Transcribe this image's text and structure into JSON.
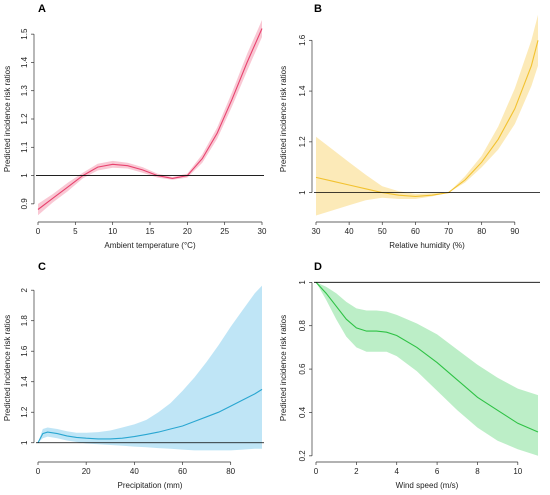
{
  "chart_data": [
    {
      "type": "line",
      "panel": "A",
      "xlabel": "Ambient temperature (°C)",
      "ylabel": "Predicted incidence risk ratios",
      "xlim": [
        0,
        30
      ],
      "ylim": [
        0.85,
        1.55
      ],
      "xticks": [
        0,
        5,
        10,
        15,
        20,
        25,
        30
      ],
      "yticks": [
        0.9,
        1.0,
        1.1,
        1.2,
        1.3,
        1.4,
        1.5
      ],
      "reference_line": 1.0,
      "color": "#e8436f",
      "band_color": "#f7b6c6",
      "series": [
        {
          "x": [
            0,
            2,
            4,
            6,
            8,
            10,
            12,
            14,
            16,
            18,
            20,
            22,
            24,
            26,
            28,
            30
          ],
          "y": [
            0.88,
            0.92,
            0.96,
            1.0,
            1.03,
            1.04,
            1.035,
            1.02,
            1.0,
            0.99,
            1.0,
            1.06,
            1.15,
            1.27,
            1.4,
            1.52
          ],
          "lower": [
            0.86,
            0.905,
            0.945,
            0.99,
            1.018,
            1.028,
            1.025,
            1.01,
            0.993,
            0.985,
            0.993,
            1.045,
            1.13,
            1.245,
            1.37,
            1.49
          ],
          "upper": [
            0.9,
            0.935,
            0.975,
            1.01,
            1.042,
            1.052,
            1.045,
            1.03,
            1.007,
            0.995,
            1.007,
            1.075,
            1.17,
            1.295,
            1.43,
            1.55
          ]
        }
      ]
    },
    {
      "type": "line",
      "panel": "B",
      "xlabel": "Relative humidity (%)",
      "ylabel": "Predicted incidence risk ratios",
      "xlim": [
        30,
        97
      ],
      "ylim": [
        0.9,
        1.68
      ],
      "xticks": [
        30,
        40,
        50,
        60,
        70,
        80,
        90
      ],
      "yticks": [
        1.0,
        1.2,
        1.4,
        1.6
      ],
      "reference_line": 1.0,
      "color": "#f2c230",
      "band_color": "#fbe3a0",
      "series": [
        {
          "x": [
            30,
            35,
            40,
            45,
            50,
            55,
            60,
            65,
            70,
            75,
            80,
            85,
            90,
            95,
            97
          ],
          "y": [
            1.06,
            1.045,
            1.03,
            1.015,
            1.0,
            0.99,
            0.985,
            0.99,
            1.0,
            1.05,
            1.12,
            1.21,
            1.33,
            1.5,
            1.6
          ],
          "lower": [
            0.91,
            0.93,
            0.95,
            0.97,
            0.98,
            0.975,
            0.975,
            0.985,
            1.0,
            1.04,
            1.1,
            1.17,
            1.27,
            1.42,
            1.5
          ],
          "upper": [
            1.22,
            1.17,
            1.12,
            1.07,
            1.025,
            1.005,
            0.995,
            0.998,
            1.0,
            1.065,
            1.145,
            1.26,
            1.41,
            1.6,
            1.7
          ]
        }
      ]
    },
    {
      "type": "line",
      "panel": "C",
      "xlabel": "Precipitation (mm)",
      "ylabel": "Predicted incidence risk ratios",
      "xlim": [
        0,
        93
      ],
      "ylim": [
        0.9,
        2.08
      ],
      "xticks": [
        0,
        20,
        40,
        60,
        80
      ],
      "yticks": [
        1.0,
        1.2,
        1.4,
        1.6,
        1.8,
        2.0
      ],
      "reference_line": 1.0,
      "color": "#29a6d1",
      "band_color": "#a9dcf3",
      "series": [
        {
          "x": [
            0,
            2,
            4,
            8,
            12,
            16,
            20,
            25,
            30,
            35,
            40,
            45,
            50,
            55,
            60,
            65,
            70,
            75,
            80,
            85,
            90,
            93
          ],
          "y": [
            1.0,
            1.06,
            1.07,
            1.06,
            1.045,
            1.035,
            1.03,
            1.025,
            1.025,
            1.03,
            1.04,
            1.055,
            1.07,
            1.09,
            1.11,
            1.14,
            1.17,
            1.2,
            1.24,
            1.28,
            1.32,
            1.35
          ],
          "lower": [
            1.0,
            1.03,
            1.04,
            1.03,
            1.015,
            1.005,
            0.995,
            0.99,
            0.985,
            0.98,
            0.975,
            0.97,
            0.965,
            0.96,
            0.955,
            0.95,
            0.95,
            0.95,
            0.95,
            0.955,
            0.96,
            0.96
          ],
          "upper": [
            1.0,
            1.09,
            1.1,
            1.09,
            1.075,
            1.065,
            1.065,
            1.07,
            1.08,
            1.1,
            1.12,
            1.15,
            1.2,
            1.26,
            1.34,
            1.43,
            1.53,
            1.64,
            1.76,
            1.87,
            1.98,
            2.03
          ]
        }
      ]
    },
    {
      "type": "line",
      "panel": "D",
      "xlabel": "Wind speed (m/s)",
      "ylabel": "Predicted incidence risk ratios",
      "xlim": [
        0,
        11
      ],
      "ylim": [
        0.19,
        1.02
      ],
      "xticks": [
        0,
        2,
        4,
        6,
        8,
        10
      ],
      "yticks": [
        0.2,
        0.4,
        0.6,
        0.8,
        1.0
      ],
      "reference_line": 1.0,
      "color": "#2ec245",
      "band_color": "#a6e8b4",
      "series": [
        {
          "x": [
            0,
            0.5,
            1,
            1.5,
            2,
            2.5,
            3,
            3.5,
            4,
            5,
            6,
            7,
            8,
            9,
            10,
            11
          ],
          "y": [
            1.0,
            0.95,
            0.89,
            0.83,
            0.79,
            0.775,
            0.775,
            0.77,
            0.755,
            0.7,
            0.63,
            0.55,
            0.47,
            0.41,
            0.35,
            0.31
          ],
          "lower": [
            1.0,
            0.92,
            0.83,
            0.75,
            0.7,
            0.68,
            0.68,
            0.68,
            0.66,
            0.59,
            0.5,
            0.41,
            0.33,
            0.27,
            0.23,
            0.2
          ],
          "upper": [
            1.0,
            0.98,
            0.95,
            0.91,
            0.88,
            0.87,
            0.87,
            0.865,
            0.85,
            0.81,
            0.76,
            0.69,
            0.62,
            0.56,
            0.51,
            0.48
          ]
        }
      ]
    }
  ]
}
